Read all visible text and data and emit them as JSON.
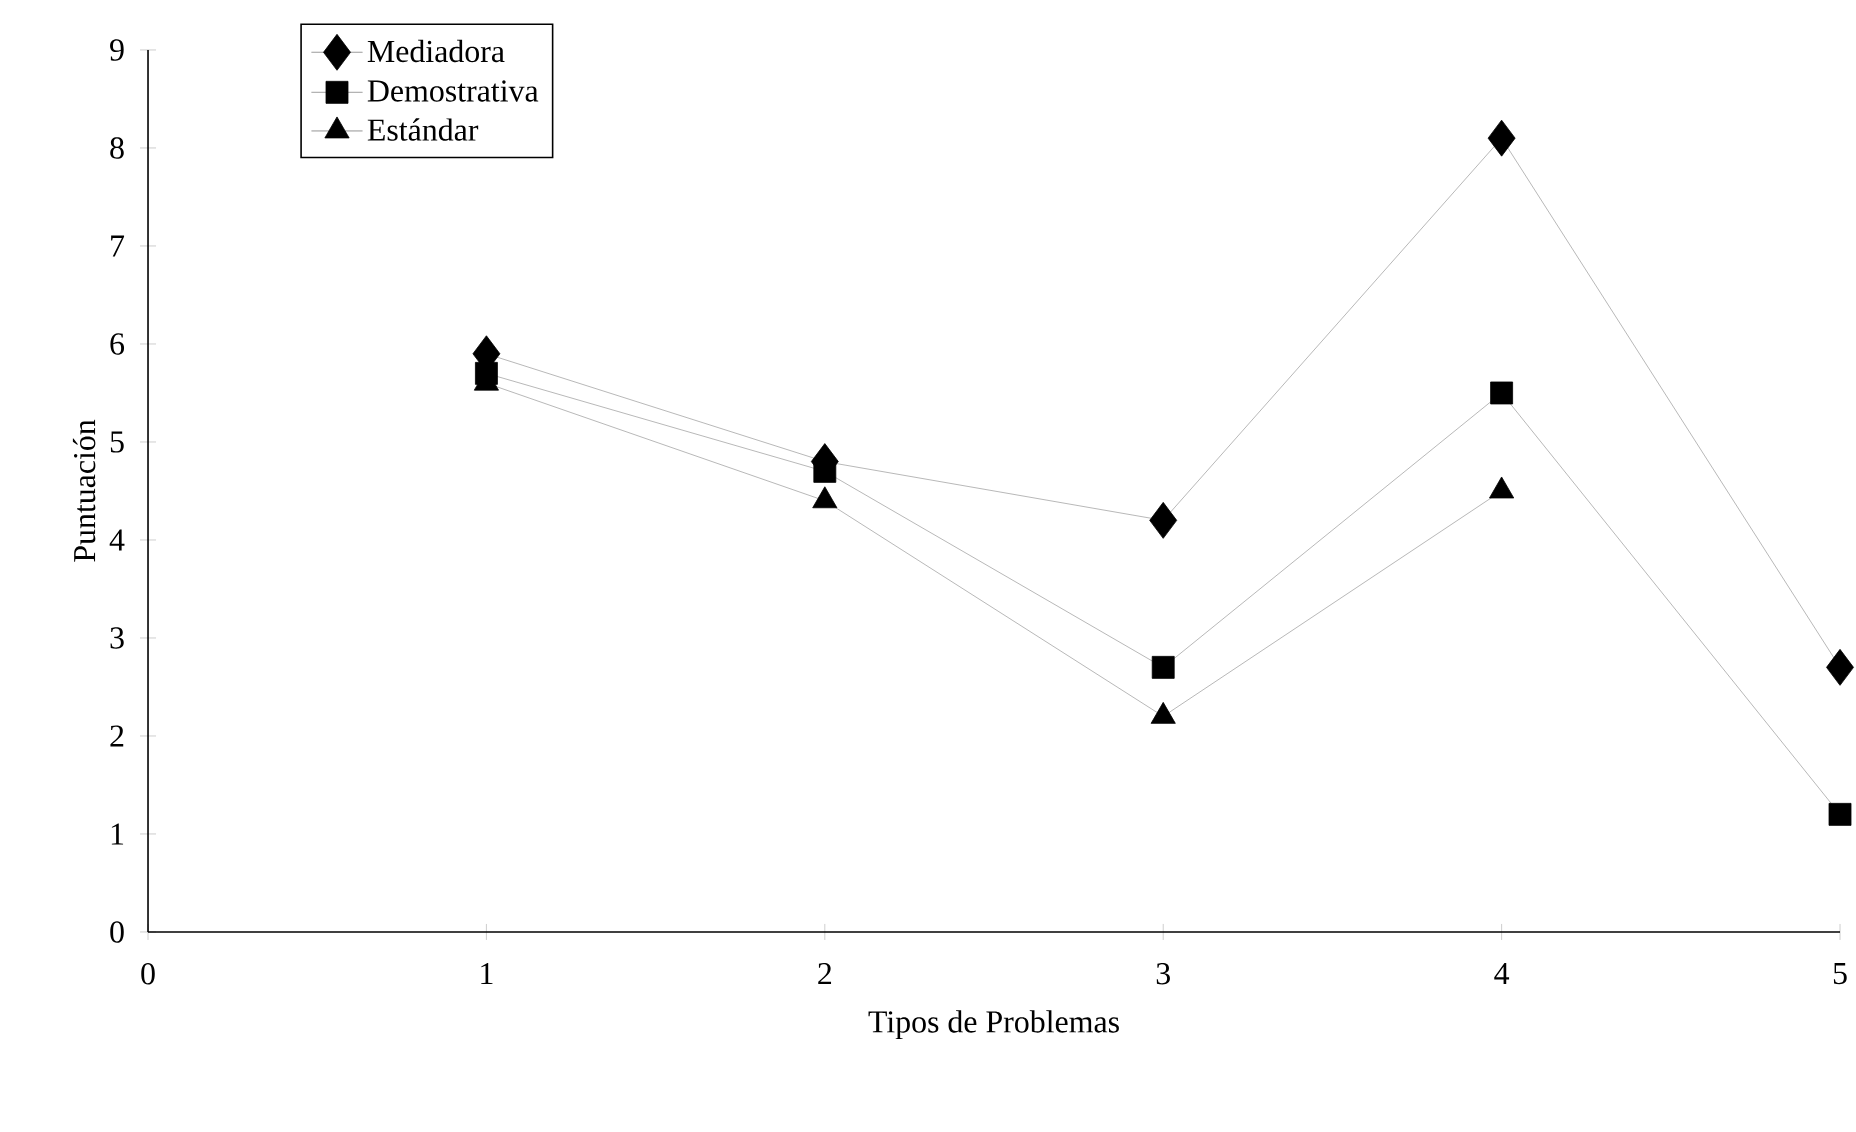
{
  "chart_data": {
    "type": "line",
    "xlabel": "Tipos de Problemas",
    "ylabel": "Puntuación",
    "x": [
      1,
      2,
      3,
      4,
      5
    ],
    "series": [
      {
        "name": "Mediadora",
        "color": "#000000",
        "marker": "diamond",
        "values": [
          5.9,
          4.8,
          4.2,
          8.1,
          2.7
        ]
      },
      {
        "name": "Demostrativa",
        "color": "#000000",
        "marker": "square",
        "values": [
          5.7,
          4.7,
          2.7,
          5.5,
          1.2
        ]
      },
      {
        "name": "Estándar",
        "color": "#000000",
        "marker": "triangle",
        "values": [
          5.6,
          4.4,
          2.2,
          4.5,
          null
        ]
      }
    ],
    "xlim": [
      0,
      5
    ],
    "xticks": [
      0,
      1,
      2,
      3,
      4,
      5
    ],
    "ylim": [
      0,
      9
    ],
    "yticks": [
      0,
      1,
      2,
      3,
      4,
      5,
      6,
      7,
      8,
      9
    ],
    "legend": "top left",
    "grid": false
  }
}
